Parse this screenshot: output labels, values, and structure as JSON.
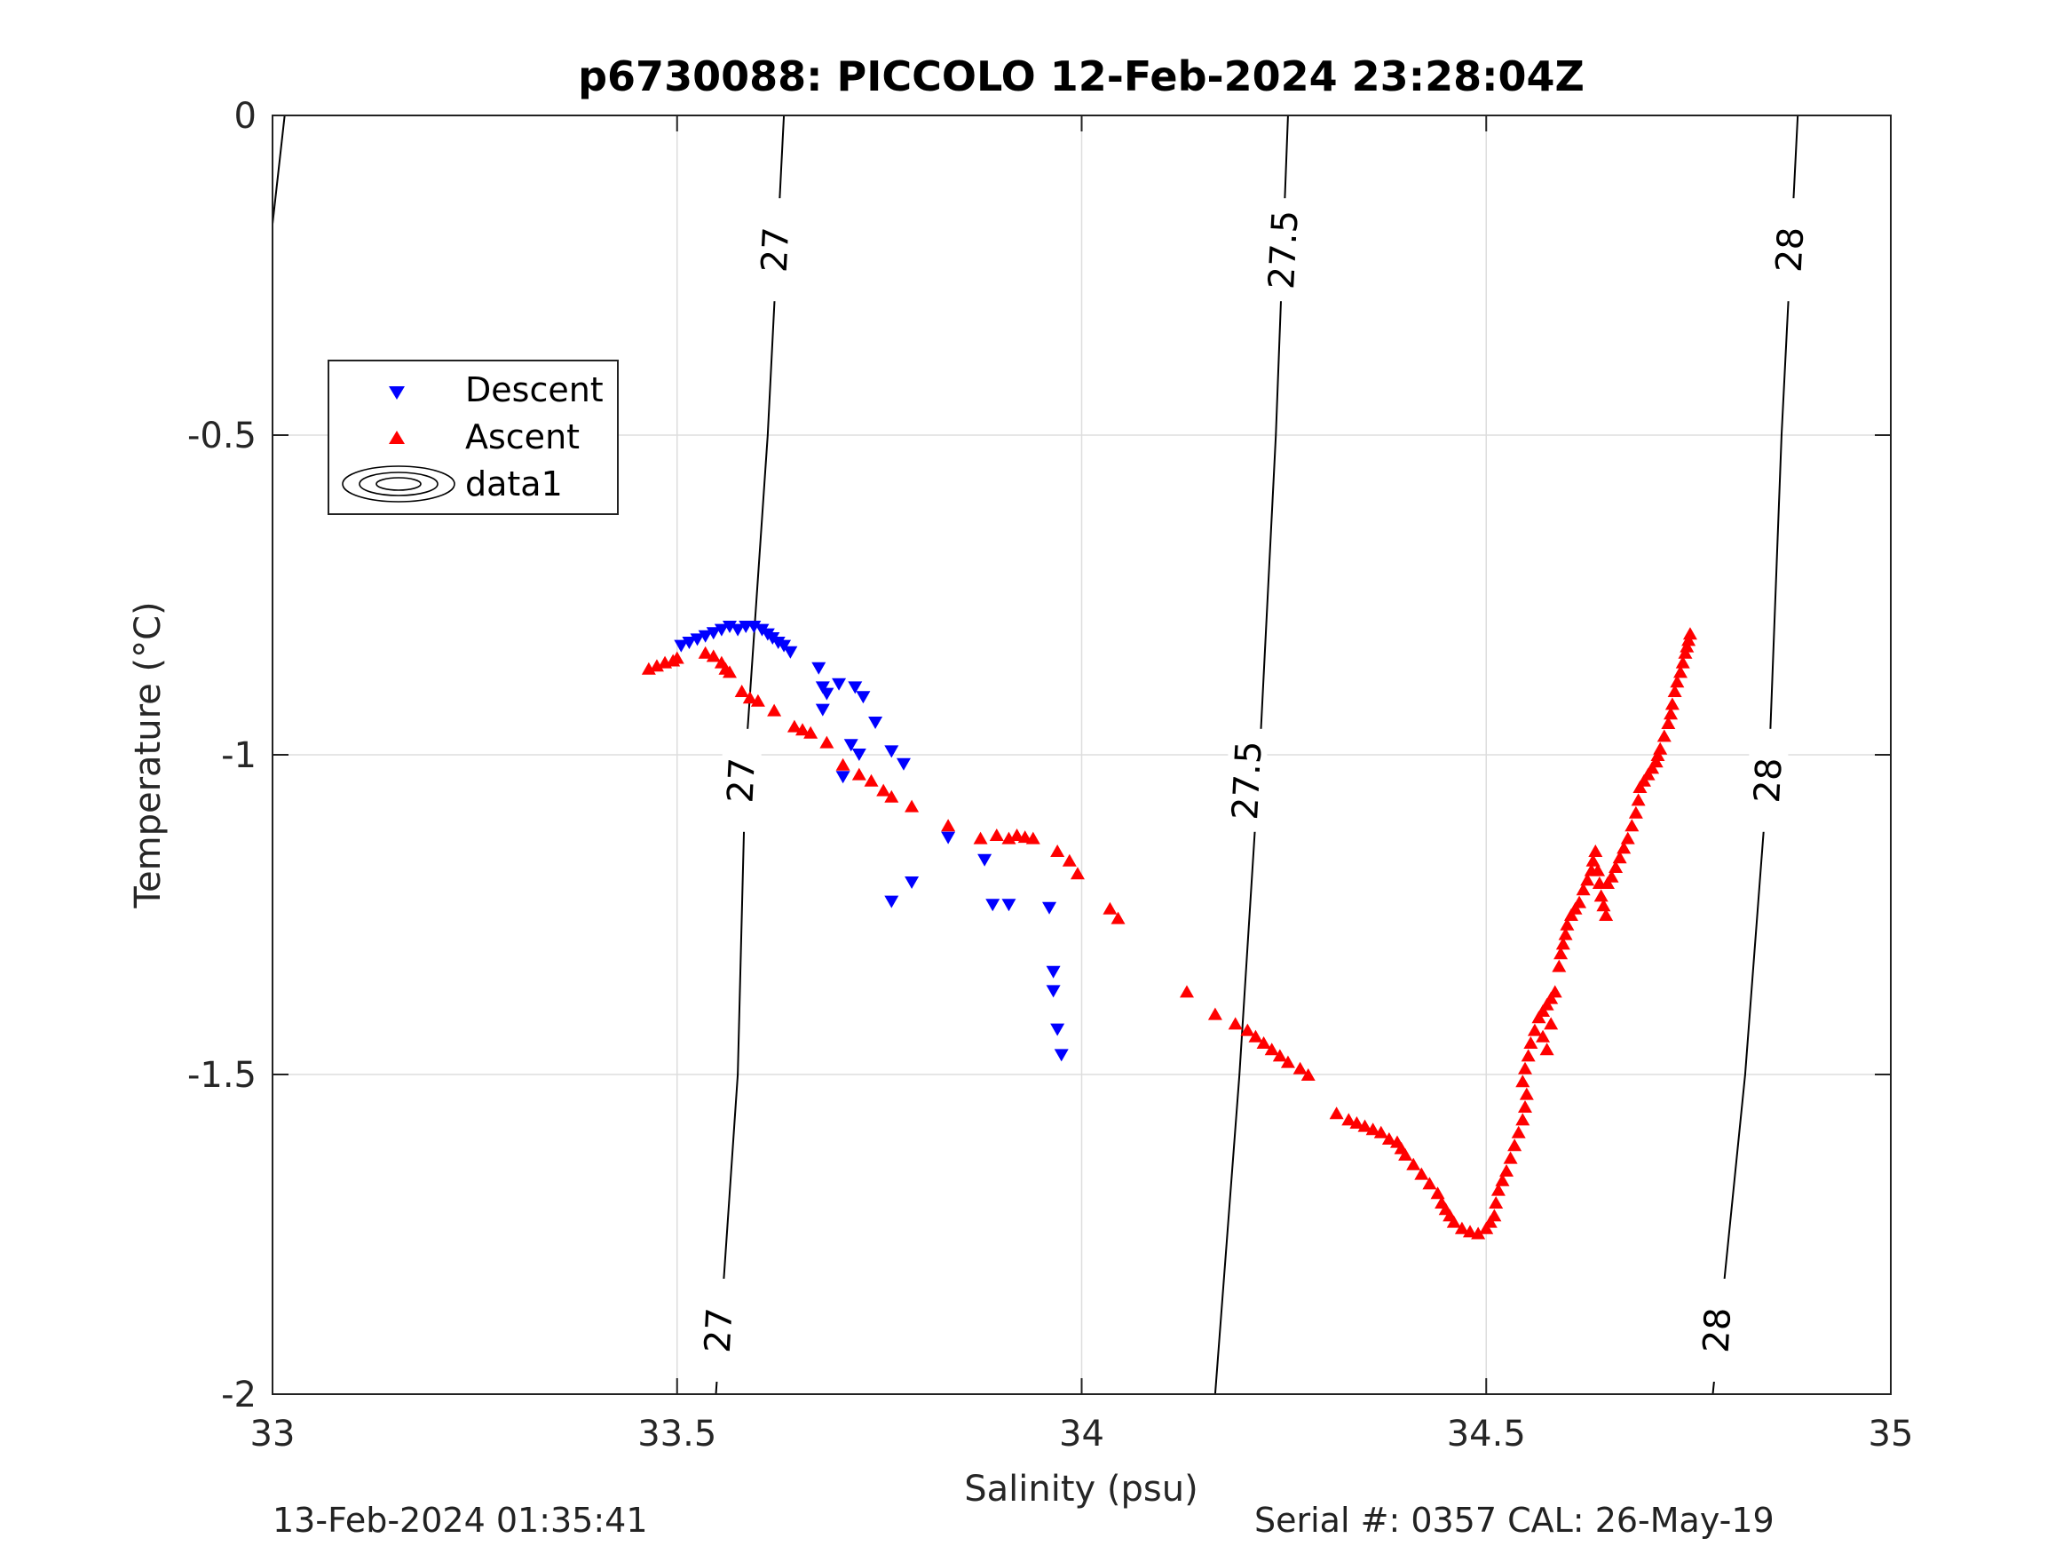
{
  "chart_data": {
    "type": "scatter",
    "title": "p6730088: PICCOLO 12-Feb-2024 23:28:04Z",
    "xlabel": "Salinity (psu)",
    "ylabel": "Temperature (°C)",
    "xlim": [
      33,
      35
    ],
    "ylim": [
      -2,
      0
    ],
    "x_ticks": [
      "33",
      "33.5",
      "34",
      "34.5",
      "35"
    ],
    "y_ticks": [
      "0",
      "-0.5",
      "-1",
      "-1.5",
      "-2"
    ],
    "grid": true,
    "legend": {
      "placement": "upper-left",
      "entries": [
        "Descent",
        "Ascent",
        "data1"
      ]
    },
    "colors": {
      "descent": "#0000ff",
      "ascent": "#ff0000",
      "contour": "#000000",
      "grid": "#dddddd"
    },
    "series": [
      {
        "name": "Descent",
        "marker": "triangle-down",
        "points": [
          [
            33.505,
            -0.83
          ],
          [
            33.515,
            -0.825
          ],
          [
            33.525,
            -0.82
          ],
          [
            33.535,
            -0.815
          ],
          [
            33.545,
            -0.81
          ],
          [
            33.555,
            -0.805
          ],
          [
            33.565,
            -0.8
          ],
          [
            33.575,
            -0.805
          ],
          [
            33.585,
            -0.8
          ],
          [
            33.595,
            -0.8
          ],
          [
            33.605,
            -0.805
          ],
          [
            33.612,
            -0.812
          ],
          [
            33.618,
            -0.818
          ],
          [
            33.625,
            -0.825
          ],
          [
            33.632,
            -0.83
          ],
          [
            33.64,
            -0.84
          ],
          [
            33.675,
            -0.865
          ],
          [
            33.68,
            -0.895
          ],
          [
            33.685,
            -0.905
          ],
          [
            33.68,
            -0.93
          ],
          [
            33.7,
            -0.89
          ],
          [
            33.72,
            -0.895
          ],
          [
            33.73,
            -0.91
          ],
          [
            33.745,
            -0.95
          ],
          [
            33.715,
            -0.985
          ],
          [
            33.725,
            -1.0
          ],
          [
            33.765,
            -0.995
          ],
          [
            33.78,
            -1.015
          ],
          [
            33.705,
            -1.035
          ],
          [
            33.835,
            -1.13
          ],
          [
            33.88,
            -1.165
          ],
          [
            33.79,
            -1.2
          ],
          [
            33.765,
            -1.23
          ],
          [
            33.89,
            -1.235
          ],
          [
            33.91,
            -1.235
          ],
          [
            33.96,
            -1.24
          ],
          [
            33.965,
            -1.34
          ],
          [
            33.965,
            -1.37
          ],
          [
            33.97,
            -1.43
          ],
          [
            33.975,
            -1.47
          ]
        ]
      },
      {
        "name": "Ascent",
        "marker": "triangle-up",
        "points": [
          [
            33.465,
            -0.865
          ],
          [
            33.475,
            -0.86
          ],
          [
            33.485,
            -0.855
          ],
          [
            33.495,
            -0.852
          ],
          [
            33.5,
            -0.848
          ],
          [
            33.535,
            -0.84
          ],
          [
            33.545,
            -0.845
          ],
          [
            33.555,
            -0.855
          ],
          [
            33.56,
            -0.865
          ],
          [
            33.565,
            -0.87
          ],
          [
            33.58,
            -0.9
          ],
          [
            33.59,
            -0.91
          ],
          [
            33.6,
            -0.915
          ],
          [
            33.62,
            -0.93
          ],
          [
            33.645,
            -0.955
          ],
          [
            33.655,
            -0.96
          ],
          [
            33.665,
            -0.965
          ],
          [
            33.685,
            -0.98
          ],
          [
            33.705,
            -1.015
          ],
          [
            33.725,
            -1.03
          ],
          [
            33.74,
            -1.04
          ],
          [
            33.755,
            -1.055
          ],
          [
            33.765,
            -1.065
          ],
          [
            33.79,
            -1.08
          ],
          [
            33.835,
            -1.11
          ],
          [
            33.875,
            -1.13
          ],
          [
            33.895,
            -1.125
          ],
          [
            33.91,
            -1.13
          ],
          [
            33.92,
            -1.125
          ],
          [
            33.93,
            -1.128
          ],
          [
            33.94,
            -1.13
          ],
          [
            33.97,
            -1.15
          ],
          [
            33.985,
            -1.165
          ],
          [
            33.995,
            -1.185
          ],
          [
            34.035,
            -1.24
          ],
          [
            34.045,
            -1.255
          ],
          [
            34.13,
            -1.37
          ],
          [
            34.165,
            -1.405
          ],
          [
            34.19,
            -1.42
          ],
          [
            34.205,
            -1.43
          ],
          [
            34.215,
            -1.44
          ],
          [
            34.225,
            -1.45
          ],
          [
            34.235,
            -1.46
          ],
          [
            34.245,
            -1.47
          ],
          [
            34.255,
            -1.48
          ],
          [
            34.27,
            -1.49
          ],
          [
            34.28,
            -1.5
          ],
          [
            34.315,
            -1.56
          ],
          [
            34.33,
            -1.57
          ],
          [
            34.34,
            -1.575
          ],
          [
            34.35,
            -1.58
          ],
          [
            34.36,
            -1.585
          ],
          [
            34.37,
            -1.59
          ],
          [
            34.38,
            -1.6
          ],
          [
            34.39,
            -1.605
          ],
          [
            34.395,
            -1.615
          ],
          [
            34.4,
            -1.625
          ],
          [
            34.41,
            -1.64
          ],
          [
            34.42,
            -1.655
          ],
          [
            34.43,
            -1.67
          ],
          [
            34.44,
            -1.685
          ],
          [
            34.445,
            -1.7
          ],
          [
            34.45,
            -1.71
          ],
          [
            34.455,
            -1.72
          ],
          [
            34.46,
            -1.73
          ],
          [
            34.47,
            -1.74
          ],
          [
            34.48,
            -1.745
          ],
          [
            34.49,
            -1.748
          ],
          [
            34.5,
            -1.74
          ],
          [
            34.505,
            -1.73
          ],
          [
            34.51,
            -1.72
          ],
          [
            34.512,
            -1.7
          ],
          [
            34.515,
            -1.68
          ],
          [
            34.52,
            -1.665
          ],
          [
            34.525,
            -1.65
          ],
          [
            34.53,
            -1.63
          ],
          [
            34.535,
            -1.61
          ],
          [
            34.54,
            -1.59
          ],
          [
            34.545,
            -1.57
          ],
          [
            34.548,
            -1.55
          ],
          [
            34.55,
            -1.53
          ],
          [
            34.545,
            -1.51
          ],
          [
            34.548,
            -1.49
          ],
          [
            34.552,
            -1.47
          ],
          [
            34.555,
            -1.45
          ],
          [
            34.56,
            -1.43
          ],
          [
            34.565,
            -1.41
          ],
          [
            34.57,
            -1.4
          ],
          [
            34.575,
            -1.39
          ],
          [
            34.58,
            -1.38
          ],
          [
            34.585,
            -1.37
          ],
          [
            34.57,
            -1.44
          ],
          [
            34.575,
            -1.46
          ],
          [
            34.58,
            -1.42
          ],
          [
            34.59,
            -1.33
          ],
          [
            34.592,
            -1.31
          ],
          [
            34.595,
            -1.295
          ],
          [
            34.598,
            -1.28
          ],
          [
            34.6,
            -1.265
          ],
          [
            34.605,
            -1.25
          ],
          [
            34.61,
            -1.24
          ],
          [
            34.615,
            -1.23
          ],
          [
            34.62,
            -1.21
          ],
          [
            34.625,
            -1.195
          ],
          [
            34.63,
            -1.18
          ],
          [
            34.632,
            -1.165
          ],
          [
            34.635,
            -1.15
          ],
          [
            34.638,
            -1.18
          ],
          [
            34.64,
            -1.2
          ],
          [
            34.642,
            -1.22
          ],
          [
            34.645,
            -1.235
          ],
          [
            34.648,
            -1.25
          ],
          [
            34.65,
            -1.2
          ],
          [
            34.655,
            -1.19
          ],
          [
            34.66,
            -1.175
          ],
          [
            34.665,
            -1.16
          ],
          [
            34.67,
            -1.145
          ],
          [
            34.675,
            -1.13
          ],
          [
            34.68,
            -1.11
          ],
          [
            34.685,
            -1.09
          ],
          [
            34.688,
            -1.07
          ],
          [
            34.69,
            -1.05
          ],
          [
            34.695,
            -1.04
          ],
          [
            34.7,
            -1.03
          ],
          [
            34.705,
            -1.02
          ],
          [
            34.71,
            -1.01
          ],
          [
            34.712,
            -1.0
          ],
          [
            34.715,
            -0.99
          ],
          [
            34.72,
            -0.97
          ],
          [
            34.725,
            -0.95
          ],
          [
            34.728,
            -0.935
          ],
          [
            34.73,
            -0.92
          ],
          [
            34.733,
            -0.9
          ],
          [
            34.736,
            -0.885
          ],
          [
            34.74,
            -0.87
          ],
          [
            34.743,
            -0.855
          ],
          [
            34.746,
            -0.84
          ],
          [
            34.748,
            -0.83
          ],
          [
            34.75,
            -0.82
          ],
          [
            34.752,
            -0.81
          ]
        ]
      }
    ],
    "contours": [
      {
        "label": "27",
        "points": [
          [
            33.632,
            0
          ],
          [
            33.612,
            -0.5
          ],
          [
            33.585,
            -1.0
          ],
          [
            33.575,
            -1.5
          ],
          [
            33.548,
            -2.0
          ]
        ],
        "label_positions": [
          [
            33.622,
            -0.21
          ],
          [
            33.58,
            -1.04
          ],
          [
            33.552,
            -1.9
          ]
        ]
      },
      {
        "label": "27.5",
        "points": [
          [
            34.255,
            0
          ],
          [
            34.24,
            -0.5
          ],
          [
            34.22,
            -1.0
          ],
          [
            34.195,
            -1.5
          ],
          [
            34.165,
            -2.0
          ]
        ],
        "label_positions": [
          [
            34.25,
            -0.21
          ],
          [
            34.205,
            -1.04
          ],
          null
        ]
      },
      {
        "label": "28",
        "points": [
          [
            34.885,
            0
          ],
          [
            34.865,
            -0.5
          ],
          [
            34.85,
            -1.0
          ],
          [
            34.82,
            -1.5
          ],
          [
            34.78,
            -2.0
          ]
        ],
        "label_positions": [
          [
            34.876,
            -0.21
          ],
          [
            34.849,
            -1.04
          ],
          [
            34.786,
            -1.9
          ]
        ]
      },
      {
        "label": "",
        "points": [
          [
            33.015,
            0
          ],
          [
            33.0,
            -0.17
          ]
        ],
        "label_positions": []
      }
    ]
  },
  "footer": {
    "left": "13-Feb-2024 01:35:41",
    "right": "Serial #: 0357  CAL: 26-May-19"
  }
}
